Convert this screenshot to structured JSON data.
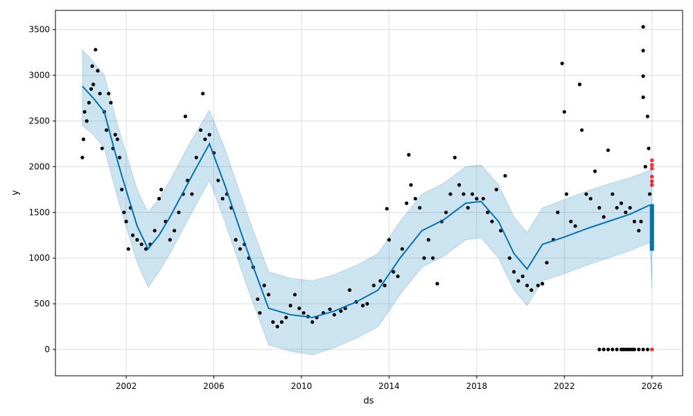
{
  "chart_data": {
    "type": "line",
    "title": "",
    "xlabel": "ds",
    "ylabel": "y",
    "xlim": [
      1998.77,
      2027.4
    ],
    "ylim": [
      -288,
      3710
    ],
    "grid": true,
    "xticks": [
      2002,
      2006,
      2010,
      2014,
      2018,
      2022,
      2026
    ],
    "xtick_labels": [
      "2002",
      "2006",
      "2010",
      "2014",
      "2018",
      "2022",
      "2026"
    ],
    "yticks": [
      0,
      500,
      1000,
      1500,
      2000,
      2500,
      3000,
      3500
    ],
    "ytick_labels": [
      "0",
      "500",
      "1000",
      "1500",
      "2000",
      "2500",
      "3000",
      "3500"
    ],
    "colors": {
      "trend": "#0072B2",
      "band": "#0072B2",
      "obs": "#000000",
      "outlier": "#ff0000"
    },
    "forecast": [
      [
        2000.0,
        2880,
        3280,
        2450
      ],
      [
        2000.5,
        2750,
        3150,
        2350
      ],
      [
        2001.0,
        2600,
        3000,
        2200
      ],
      [
        2001.5,
        2150,
        2550,
        1750
      ],
      [
        2001.8,
        1900,
        2300,
        1500
      ],
      [
        2002.5,
        1350,
        1750,
        950
      ],
      [
        2003.0,
        1100,
        1500,
        680
      ],
      [
        2003.5,
        1250,
        1650,
        850
      ],
      [
        2004.0,
        1450,
        1850,
        1050
      ],
      [
        2005.0,
        1900,
        2300,
        1500
      ],
      [
        2005.8,
        2250,
        2620,
        1850
      ],
      [
        2006.5,
        1800,
        2200,
        1400
      ],
      [
        2007.5,
        1100,
        1500,
        700
      ],
      [
        2008.5,
        450,
        850,
        50
      ],
      [
        2009.5,
        380,
        780,
        -20
      ],
      [
        2010.5,
        350,
        750,
        -60
      ],
      [
        2011.5,
        420,
        820,
        20
      ],
      [
        2012.5,
        520,
        920,
        120
      ],
      [
        2013.5,
        650,
        1050,
        250
      ],
      [
        2014.5,
        1000,
        1400,
        600
      ],
      [
        2015.5,
        1300,
        1700,
        900
      ],
      [
        2016.5,
        1420,
        1820,
        1020
      ],
      [
        2017.5,
        1600,
        2000,
        1200
      ],
      [
        2018.2,
        1620,
        2020,
        1220
      ],
      [
        2019.0,
        1400,
        1800,
        1000
      ],
      [
        2019.7,
        1050,
        1450,
        650
      ],
      [
        2020.3,
        880,
        1280,
        480
      ],
      [
        2021.0,
        1150,
        1550,
        750
      ],
      [
        2022.0,
        1230,
        1640,
        830
      ],
      [
        2023.0,
        1320,
        1730,
        920
      ],
      [
        2024.0,
        1400,
        1810,
        1000
      ],
      [
        2025.0,
        1480,
        1880,
        1080
      ],
      [
        2025.9,
        1580,
        1960,
        1170
      ],
      [
        2026.0,
        1590,
        1950,
        670
      ]
    ],
    "forecast_columns": [
      "ds",
      "yhat",
      "yhat_upper",
      "yhat_lower"
    ],
    "observations": [
      [
        2000.0,
        2100
      ],
      [
        2000.05,
        2300
      ],
      [
        2000.1,
        2600
      ],
      [
        2000.2,
        2500
      ],
      [
        2000.3,
        2700
      ],
      [
        2000.4,
        2850
      ],
      [
        2000.45,
        3100
      ],
      [
        2000.5,
        2900
      ],
      [
        2000.6,
        3280
      ],
      [
        2000.7,
        3050
      ],
      [
        2000.8,
        2800
      ],
      [
        2000.9,
        2200
      ],
      [
        2001.0,
        2600
      ],
      [
        2001.1,
        2400
      ],
      [
        2001.2,
        2800
      ],
      [
        2001.3,
        2700
      ],
      [
        2001.4,
        2200
      ],
      [
        2001.5,
        2350
      ],
      [
        2001.6,
        2300
      ],
      [
        2001.7,
        2100
      ],
      [
        2001.8,
        1750
      ],
      [
        2001.9,
        1500
      ],
      [
        2002.0,
        1400
      ],
      [
        2002.1,
        1100
      ],
      [
        2002.2,
        1550
      ],
      [
        2002.3,
        1250
      ],
      [
        2002.5,
        1200
      ],
      [
        2002.7,
        1150
      ],
      [
        2002.9,
        1100
      ],
      [
        2003.1,
        1150
      ],
      [
        2003.3,
        1300
      ],
      [
        2003.5,
        1650
      ],
      [
        2003.6,
        1750
      ],
      [
        2003.8,
        1400
      ],
      [
        2004.0,
        1200
      ],
      [
        2004.2,
        1300
      ],
      [
        2004.4,
        1500
      ],
      [
        2004.6,
        1700
      ],
      [
        2004.7,
        2550
      ],
      [
        2004.8,
        1850
      ],
      [
        2005.0,
        1700
      ],
      [
        2005.2,
        2100
      ],
      [
        2005.4,
        2400
      ],
      [
        2005.5,
        2800
      ],
      [
        2005.6,
        2300
      ],
      [
        2005.8,
        2350
      ],
      [
        2006.0,
        2150
      ],
      [
        2006.2,
        1850
      ],
      [
        2006.4,
        1650
      ],
      [
        2006.6,
        1700
      ],
      [
        2006.8,
        1550
      ],
      [
        2007.0,
        1200
      ],
      [
        2007.2,
        1100
      ],
      [
        2007.4,
        1150
      ],
      [
        2007.6,
        1000
      ],
      [
        2007.8,
        900
      ],
      [
        2008.0,
        550
      ],
      [
        2008.1,
        400
      ],
      [
        2008.3,
        700
      ],
      [
        2008.5,
        600
      ],
      [
        2008.7,
        300
      ],
      [
        2008.9,
        250
      ],
      [
        2009.1,
        300
      ],
      [
        2009.3,
        350
      ],
      [
        2009.5,
        480
      ],
      [
        2009.7,
        600
      ],
      [
        2009.9,
        450
      ],
      [
        2010.1,
        400
      ],
      [
        2010.3,
        360
      ],
      [
        2010.5,
        300
      ],
      [
        2010.7,
        350
      ],
      [
        2011.0,
        400
      ],
      [
        2011.3,
        440
      ],
      [
        2011.5,
        380
      ],
      [
        2011.8,
        420
      ],
      [
        2012.0,
        450
      ],
      [
        2012.2,
        650
      ],
      [
        2012.5,
        520
      ],
      [
        2012.8,
        480
      ],
      [
        2013.0,
        500
      ],
      [
        2013.3,
        700
      ],
      [
        2013.6,
        750
      ],
      [
        2013.8,
        700
      ],
      [
        2013.9,
        1540
      ],
      [
        2014.0,
        1200
      ],
      [
        2014.2,
        850
      ],
      [
        2014.4,
        800
      ],
      [
        2014.6,
        1100
      ],
      [
        2014.8,
        1600
      ],
      [
        2014.9,
        2130
      ],
      [
        2015.0,
        1800
      ],
      [
        2015.2,
        1650
      ],
      [
        2015.4,
        1550
      ],
      [
        2015.6,
        1000
      ],
      [
        2015.8,
        1200
      ],
      [
        2016.0,
        1000
      ],
      [
        2016.2,
        720
      ],
      [
        2016.4,
        1400
      ],
      [
        2016.6,
        1500
      ],
      [
        2016.8,
        1700
      ],
      [
        2017.0,
        2100
      ],
      [
        2017.2,
        1800
      ],
      [
        2017.4,
        1700
      ],
      [
        2017.6,
        1550
      ],
      [
        2017.8,
        1700
      ],
      [
        2018.0,
        1650
      ],
      [
        2018.3,
        1650
      ],
      [
        2018.5,
        1500
      ],
      [
        2018.7,
        1400
      ],
      [
        2018.9,
        1750
      ],
      [
        2019.1,
        1300
      ],
      [
        2019.3,
        1900
      ],
      [
        2019.5,
        1000
      ],
      [
        2019.7,
        850
      ],
      [
        2019.9,
        750
      ],
      [
        2020.1,
        800
      ],
      [
        2020.3,
        700
      ],
      [
        2020.5,
        650
      ],
      [
        2020.8,
        700
      ],
      [
        2021.0,
        720
      ],
      [
        2021.2,
        950
      ],
      [
        2021.5,
        1200
      ],
      [
        2021.7,
        1500
      ],
      [
        2021.9,
        3130
      ],
      [
        2022.0,
        2600
      ],
      [
        2022.1,
        1700
      ],
      [
        2022.3,
        1400
      ],
      [
        2022.5,
        1350
      ],
      [
        2022.7,
        2900
      ],
      [
        2022.8,
        2400
      ],
      [
        2023.0,
        1700
      ],
      [
        2023.2,
        1650
      ],
      [
        2023.4,
        1950
      ],
      [
        2023.6,
        1550
      ],
      [
        2023.8,
        1450
      ],
      [
        2024.0,
        2180
      ],
      [
        2024.2,
        1700
      ],
      [
        2024.4,
        1550
      ],
      [
        2024.6,
        1600
      ],
      [
        2024.8,
        1500
      ],
      [
        2025.0,
        1550
      ],
      [
        2025.2,
        1400
      ],
      [
        2025.4,
        1300
      ],
      [
        2025.5,
        1400
      ],
      [
        2025.6,
        3530
      ],
      [
        2025.6,
        3270
      ],
      [
        2025.6,
        2990
      ],
      [
        2025.6,
        2760
      ],
      [
        2025.7,
        2000
      ],
      [
        2025.8,
        2550
      ],
      [
        2025.85,
        2200
      ],
      [
        2025.9,
        1700
      ],
      [
        2023.6,
        0
      ],
      [
        2023.8,
        0
      ],
      [
        2024.0,
        0
      ],
      [
        2024.2,
        0
      ],
      [
        2024.4,
        0
      ],
      [
        2024.6,
        0
      ],
      [
        2024.7,
        0
      ],
      [
        2024.8,
        0
      ],
      [
        2024.9,
        0
      ],
      [
        2025.0,
        0
      ],
      [
        2025.1,
        0
      ],
      [
        2025.2,
        0
      ],
      [
        2025.4,
        0
      ],
      [
        2025.6,
        0
      ],
      [
        2025.8,
        0
      ]
    ],
    "outliers": [
      [
        2026.0,
        2070
      ],
      [
        2026.0,
        2020
      ],
      [
        2026.0,
        1980
      ],
      [
        2026.0,
        1890
      ],
      [
        2026.0,
        1840
      ],
      [
        2026.0,
        1800
      ],
      [
        2026.0,
        0
      ]
    ]
  }
}
